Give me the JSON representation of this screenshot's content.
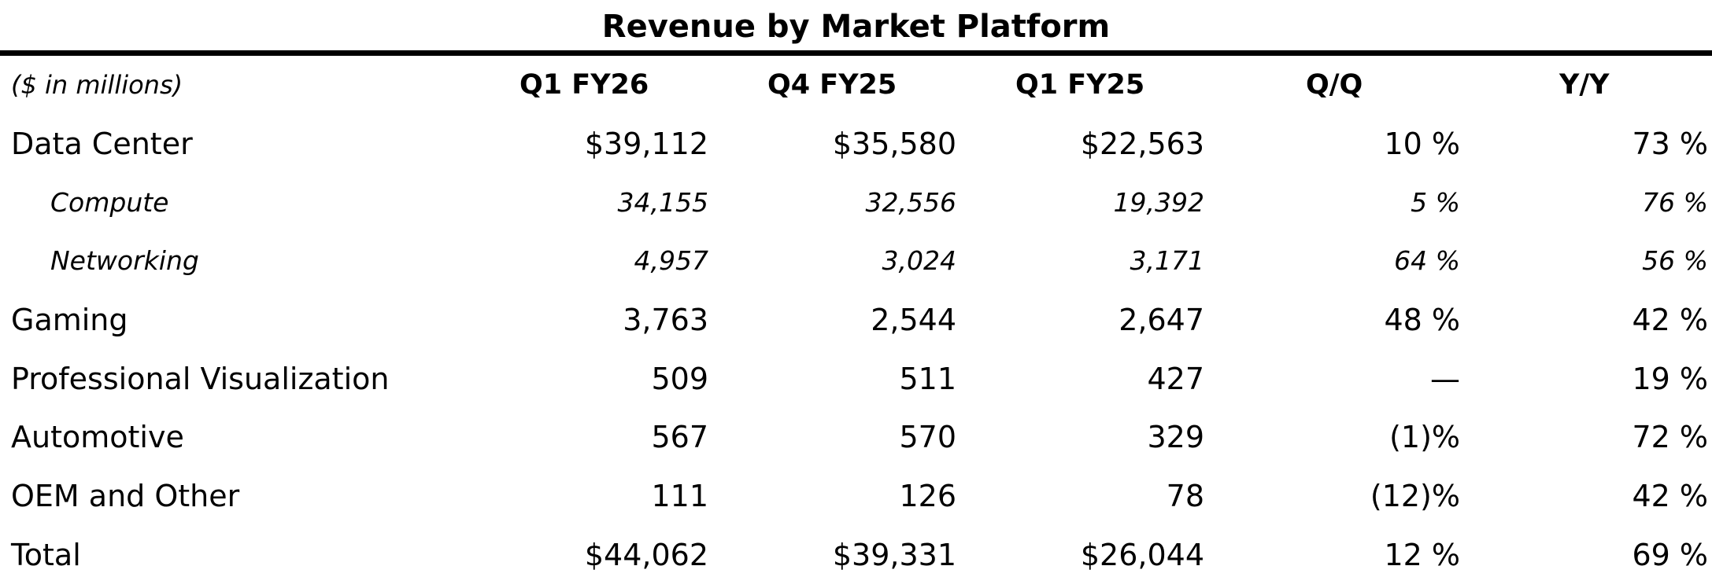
{
  "title": "Revenue by Market Platform",
  "header": {
    "label": "($ in millions)",
    "columns": [
      "Q1 FY26",
      "Q4 FY25",
      "Q1 FY25",
      "Q/Q",
      "Y/Y"
    ]
  },
  "rows": [
    {
      "label": "Data Center",
      "values": [
        "$39,112",
        "$35,580",
        "$22,563",
        "10 %",
        "73 %"
      ]
    },
    {
      "label": "Compute",
      "values": [
        "34,155",
        "32,556",
        "19,392",
        "5 %",
        "76 %"
      ]
    },
    {
      "label": "Networking",
      "values": [
        "4,957",
        "3,024",
        "3,171",
        "64 %",
        "56 %"
      ]
    },
    {
      "label": "Gaming",
      "values": [
        "3,763",
        "2,544",
        "2,647",
        "48 %",
        "42 %"
      ]
    },
    {
      "label": "Professional Visualization",
      "values": [
        "509",
        "511",
        "427",
        "—",
        "19 %"
      ]
    },
    {
      "label": "Automotive",
      "values": [
        "567",
        "570",
        "329",
        "(1)%",
        "72 %"
      ]
    },
    {
      "label": "OEM and Other",
      "values": [
        "111",
        "126",
        "78",
        "(12)%",
        "42 %"
      ]
    },
    {
      "label": "Total",
      "values": [
        "$44,062",
        "$39,331",
        "$26,044",
        "12 %",
        "69 %"
      ]
    }
  ]
}
